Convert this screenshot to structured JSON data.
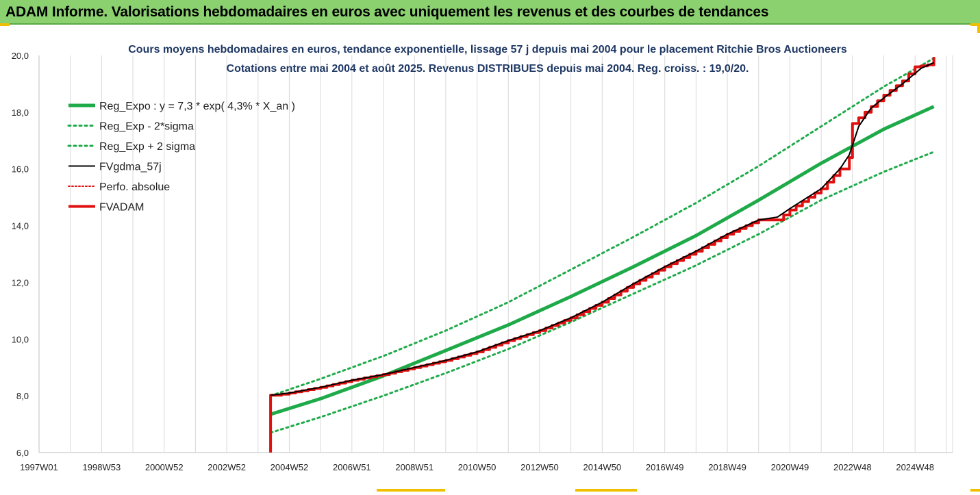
{
  "header": {
    "title": "ADAM Informe. Valorisations hebdomadaires en euros avec uniquement les revenus et des courbes de tendances"
  },
  "colors": {
    "banner": "#8bd170",
    "reg_expo": "#1faa4a",
    "sigma_bands": "#1faa4a",
    "fvgdma": "#000000",
    "perfo": "#e01010",
    "fvadam": "#e01010",
    "title_text": "#1f3864"
  },
  "chart_data": {
    "type": "line",
    "title": "Cours moyens hebdomadaires en euros, tendance exponentielle, lissage 57 j depuis mai 2004 pour le placement Ritchie Bros Auctioneers",
    "subtitle": "Cotations entre mai 2004 et août 2025. Revenus DISTRIBUES depuis mai 2004. Reg. croiss. : 19,0/20.",
    "xlabel": "",
    "ylabel": "",
    "ylim": [
      6,
      20
    ],
    "yticks": [
      "6,0",
      "8,0",
      "10,0",
      "12,0",
      "14,0",
      "16,0",
      "18,0",
      "20,0"
    ],
    "xlim": [
      1997.0,
      2026.2
    ],
    "xticks": [
      {
        "x": 1997.0,
        "label": "1997W01"
      },
      {
        "x": 1999.0,
        "label": "1998W53"
      },
      {
        "x": 2001.0,
        "label": "2000W52"
      },
      {
        "x": 2003.0,
        "label": "2002W52"
      },
      {
        "x": 2005.0,
        "label": "2004W52"
      },
      {
        "x": 2007.0,
        "label": "2006W51"
      },
      {
        "x": 2009.0,
        "label": "2008W51"
      },
      {
        "x": 2011.0,
        "label": "2010W50"
      },
      {
        "x": 2013.0,
        "label": "2012W50"
      },
      {
        "x": 2015.0,
        "label": "2014W50"
      },
      {
        "x": 2017.0,
        "label": "2016W49"
      },
      {
        "x": 2019.0,
        "label": "2018W49"
      },
      {
        "x": 2021.0,
        "label": "2020W49"
      },
      {
        "x": 2023.0,
        "label": "2022W48"
      },
      {
        "x": 2025.0,
        "label": "2024W48"
      }
    ],
    "grid": "vertical",
    "legend_position": "top-left",
    "series": [
      {
        "name": "Reg_Expo : y = 7,3 * exp( 4,3% *  X_an )",
        "color": "#1faa4a",
        "style": "solid",
        "width": 5,
        "x": [
          2004.4,
          2006,
          2008,
          2010,
          2012,
          2014,
          2016,
          2018,
          2020,
          2022,
          2024,
          2025.6
        ],
        "y": [
          7.35,
          7.9,
          8.7,
          9.6,
          10.5,
          11.5,
          12.55,
          13.65,
          14.9,
          16.2,
          17.4,
          18.2
        ]
      },
      {
        "name": "Reg_Exp - 2*sigma",
        "color": "#1faa4a",
        "style": "dotted",
        "width": 3,
        "x": [
          2004.4,
          2006,
          2008,
          2010,
          2012,
          2014,
          2016,
          2018,
          2020,
          2022,
          2024,
          2025.6
        ],
        "y": [
          6.7,
          7.25,
          8.0,
          8.8,
          9.65,
          10.6,
          11.6,
          12.6,
          13.7,
          14.9,
          15.9,
          16.6
        ]
      },
      {
        "name": "Reg_Exp + 2 sigma",
        "color": "#1faa4a",
        "style": "dotted",
        "width": 3,
        "x": [
          2004.4,
          2006,
          2008,
          2010,
          2012,
          2014,
          2016,
          2018,
          2020,
          2022,
          2024,
          2025.6
        ],
        "y": [
          8.0,
          8.6,
          9.4,
          10.3,
          11.3,
          12.45,
          13.6,
          14.8,
          16.1,
          17.5,
          18.9,
          19.9
        ]
      },
      {
        "name": "FVgdma_57j",
        "color": "#000000",
        "style": "solid",
        "width": 2,
        "x": [
          2004.4,
          2005,
          2006,
          2007,
          2008,
          2009,
          2010,
          2011,
          2012,
          2013,
          2014,
          2015,
          2016,
          2017,
          2018,
          2019,
          2020,
          2020.6,
          2021,
          2022,
          2022.6,
          2022.9,
          2023.2,
          2023.6,
          2024,
          2024.6,
          2025.2,
          2025.6
        ],
        "y": [
          8.02,
          8.1,
          8.3,
          8.55,
          8.75,
          9.0,
          9.25,
          9.55,
          9.95,
          10.3,
          10.75,
          11.3,
          11.95,
          12.55,
          13.1,
          13.7,
          14.2,
          14.3,
          14.6,
          15.3,
          16.0,
          16.5,
          17.5,
          18.15,
          18.5,
          19.0,
          19.55,
          19.75
        ]
      },
      {
        "name": "Perfo. absolue",
        "color": "#e01010",
        "style": "dotted",
        "width": 2,
        "x": [
          2004.4,
          2005,
          2006,
          2007,
          2008,
          2009,
          2010,
          2011,
          2012,
          2013,
          2014,
          2015,
          2016,
          2017,
          2018,
          2019,
          2020,
          2020.6,
          2021,
          2022,
          2022.6,
          2022.9,
          2023.2,
          2023.6,
          2024,
          2024.6,
          2025.2,
          2025.6
        ],
        "y": [
          8.02,
          8.1,
          8.3,
          8.55,
          8.75,
          9.0,
          9.25,
          9.55,
          9.95,
          10.3,
          10.75,
          11.3,
          11.95,
          12.55,
          13.1,
          13.7,
          14.2,
          14.3,
          14.6,
          15.3,
          16.0,
          16.5,
          17.5,
          18.15,
          18.5,
          19.0,
          19.55,
          19.75
        ]
      },
      {
        "name": "FVADAM",
        "color": "#e01010",
        "style": "solid",
        "width": 4,
        "stepped": true,
        "x": [
          2004.4,
          2004.4,
          2004.5,
          2005,
          2006,
          2007,
          2008,
          2009,
          2010,
          2011,
          2012,
          2013,
          2014,
          2015,
          2016,
          2017,
          2018,
          2019,
          2020,
          2020.6,
          2021,
          2022,
          2022.6,
          2022.9,
          2023.0,
          2023.6,
          2024,
          2024.6,
          2025.0,
          2025.6,
          2025.6
        ],
        "y": [
          6.0,
          8.02,
          8.02,
          8.1,
          8.3,
          8.55,
          8.75,
          9.0,
          9.25,
          9.55,
          9.95,
          10.3,
          10.75,
          11.3,
          11.95,
          12.55,
          13.1,
          13.7,
          14.2,
          14.2,
          14.55,
          15.3,
          16.0,
          16.4,
          17.6,
          18.2,
          18.6,
          19.1,
          19.6,
          19.7,
          19.95
        ]
      }
    ]
  }
}
